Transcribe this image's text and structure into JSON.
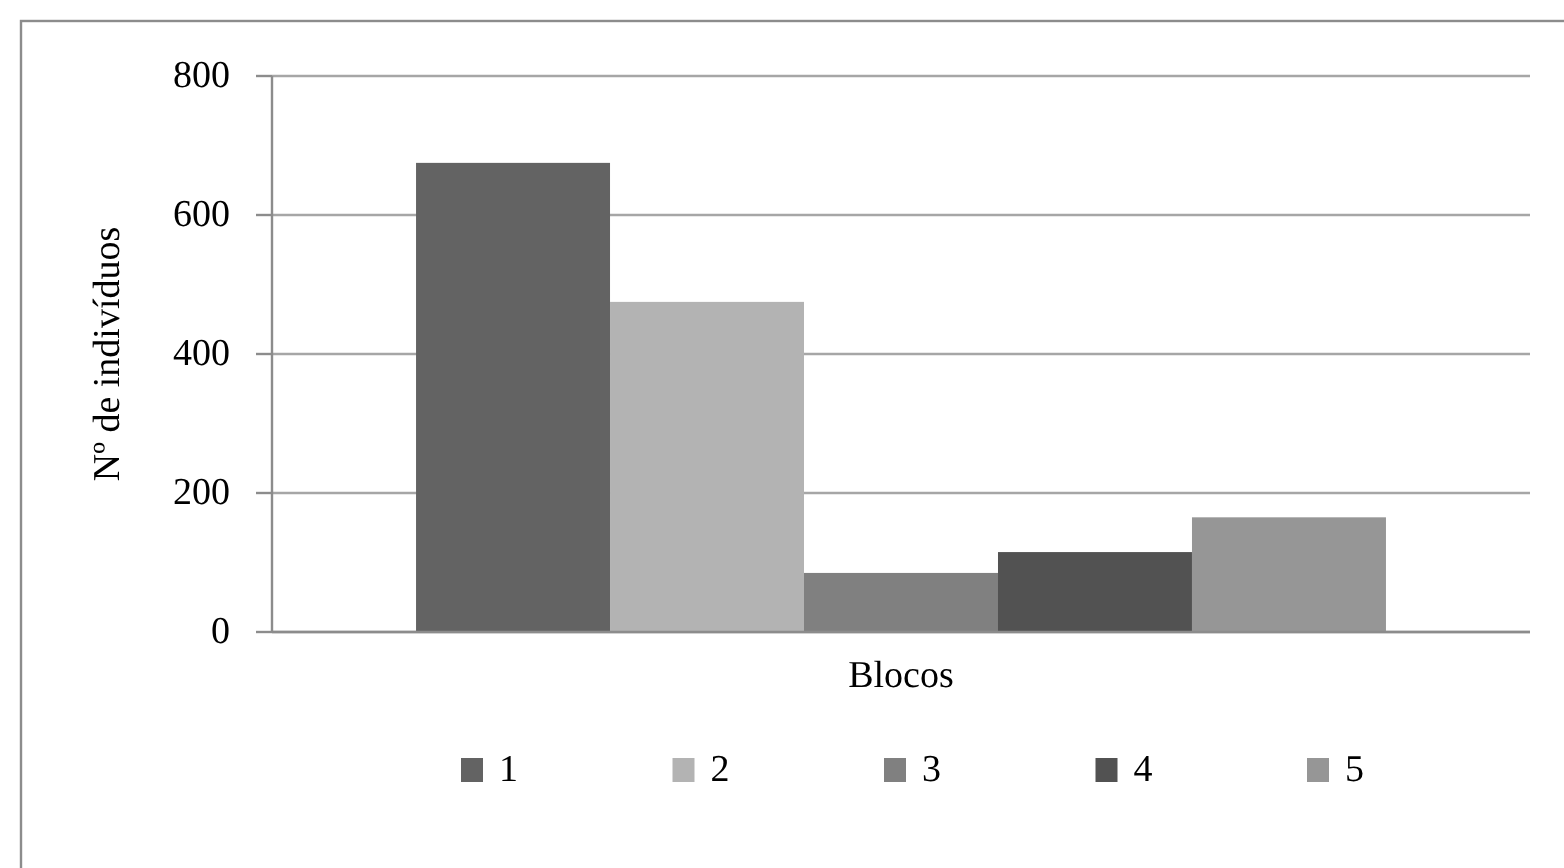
{
  "chart_data": {
    "type": "bar",
    "ylabel": "Nº de indivíduos",
    "categories": [
      "Blocos"
    ],
    "series": [
      {
        "name": "1",
        "color": "#636363",
        "values": [
          675
        ]
      },
      {
        "name": "2",
        "color": "#b3b3b3",
        "values": [
          475
        ]
      },
      {
        "name": "3",
        "color": "#808080",
        "values": [
          85
        ]
      },
      {
        "name": "4",
        "color": "#525252",
        "values": [
          115
        ]
      },
      {
        "name": "5",
        "color": "#969696",
        "values": [
          165
        ]
      }
    ],
    "ylim": [
      0,
      800
    ],
    "yticks": [
      0,
      200,
      400,
      600,
      800
    ],
    "grid": "y",
    "legend": "bottom"
  }
}
